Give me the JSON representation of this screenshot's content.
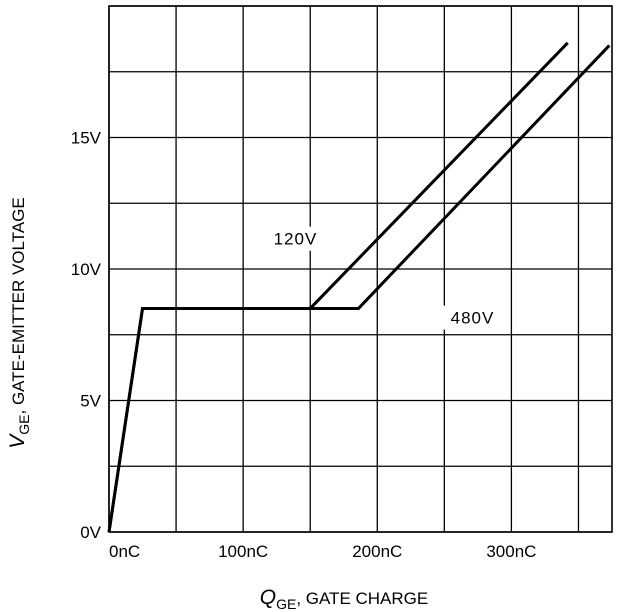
{
  "chart_data": {
    "type": "line",
    "title": "",
    "xlabel": {
      "symbol": "Q",
      "subscript": "GE",
      "text": ", GATE CHARGE"
    },
    "ylabel": {
      "symbol": "V",
      "subscript": "GE",
      "text": ", GATE-EMITTER VOLTAGE"
    },
    "xlim": [
      0,
      375
    ],
    "ylim": [
      0,
      20
    ],
    "x_ticks": [
      {
        "value": 0,
        "label": "0nC"
      },
      {
        "value": 100,
        "label": "100nC"
      },
      {
        "value": 200,
        "label": "200nC"
      },
      {
        "value": 300,
        "label": "300nC"
      }
    ],
    "y_ticks": [
      {
        "value": 0,
        "label": "0V"
      },
      {
        "value": 5,
        "label": "5V"
      },
      {
        "value": 10,
        "label": "10V"
      },
      {
        "value": 15,
        "label": "15V"
      }
    ],
    "grid": true,
    "series": [
      {
        "name": "120V",
        "x": [
          0,
          25,
          150,
          342
        ],
        "y": [
          0,
          8.5,
          8.5,
          18.6
        ],
        "label_at": {
          "x": 139,
          "y": 11
        }
      },
      {
        "name": "480V",
        "x": [
          0,
          25,
          150,
          186,
          373
        ],
        "y": [
          0,
          8.5,
          8.5,
          8.5,
          18.5
        ],
        "label_at": {
          "x": 271,
          "y": 8
        }
      }
    ]
  }
}
